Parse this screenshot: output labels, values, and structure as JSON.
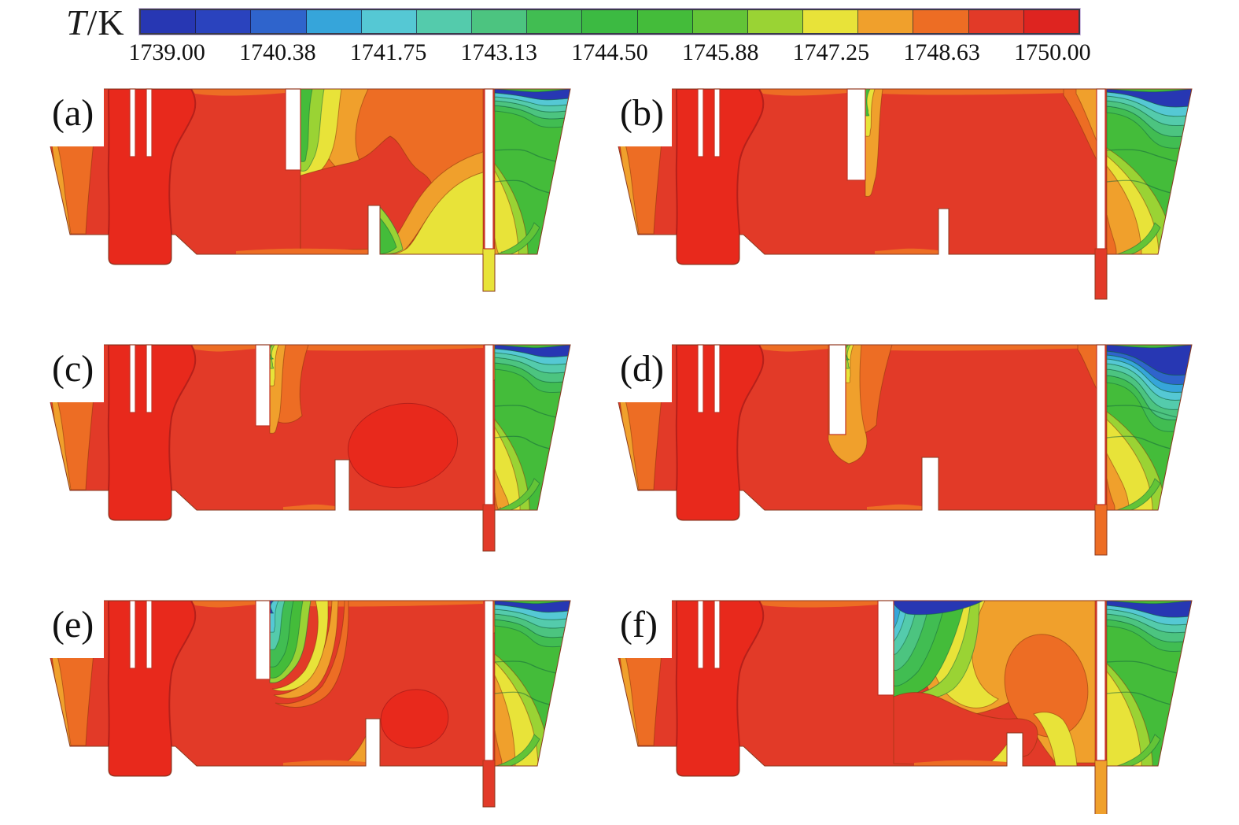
{
  "colorbar": {
    "title_symbol": "T",
    "title_unit": "/K",
    "tick_labels": [
      "1739.00",
      "1740.38",
      "1741.75",
      "1743.13",
      "1744.50",
      "1745.88",
      "1747.25",
      "1748.63",
      "1750.00"
    ],
    "segment_colors": [
      "#2737b3",
      "#2a43be",
      "#2f64cc",
      "#36a5da",
      "#55c8d4",
      "#54cbac",
      "#4cc480",
      "#41bd52",
      "#3cba42",
      "#44bc3a",
      "#63c437",
      "#9ad334",
      "#e8e339",
      "#f0a02c",
      "#ed6d24",
      "#e23a28",
      "#de2420"
    ],
    "border_color": "#3a3a4a"
  },
  "panels": [
    {
      "id": "a",
      "label": "(a)"
    },
    {
      "id": "b",
      "label": "(b)"
    },
    {
      "id": "c",
      "label": "(c)"
    },
    {
      "id": "d",
      "label": "(d)"
    },
    {
      "id": "e",
      "label": "(e)"
    },
    {
      "id": "f",
      "label": "(f)"
    }
  ],
  "chart_data": {
    "type": "heatmap",
    "subtype": "filled-contour-temperature-field",
    "variable": "T",
    "unit": "K",
    "range": [
      1739.0,
      1750.0
    ],
    "levels": [
      1739.0,
      1740.38,
      1741.75,
      1743.13,
      1744.5,
      1745.88,
      1747.25,
      1748.63,
      1750.0
    ],
    "colormap": "rainbow (blue = 1739 K cold, red = 1750 K hot)",
    "legend_position": "top",
    "layout": "2 columns x 3 rows of furnace cross-sections sharing one colorbar",
    "subplots": [
      {
        "label": "(a)",
        "summary": "Bulk melt near 1750 K; green-yellow-orange S-bands behind first baffle; red tongue in mid chamber; cool wedge (blue to green, 1739-1745 K) in top-right outlet chamber; yellow band and outlet stream about 1747 K."
      },
      {
        "label": "(b)",
        "summary": "Nearly whole tank above 1748.6 K; thin orange band along top between baffles; stratified cool wedge in top-right corner; large orange-yellow layering on right wall; outlet stream about 1750 K."
      },
      {
        "label": "(c)",
        "summary": "Bulk above 1748.6 K with bright 1750 K hot spot between bottom spur and second baffle; thin cool strip at top right; outlet stream about 1750 K."
      },
      {
        "label": "(d)",
        "summary": "Deeper first baffle; thick cold block (1739-1743 K) across top of right chamber; wide yellow layer down the right wall; orange tongue behind first baffle; outlet about 1748.6 K."
      },
      {
        "label": "(e)",
        "summary": "Cool fan of bands behind first baffle; 1750 K hot spot ahead of second baffle; enlarged yellow-orange layering in right chamber; outlet about 1750 K."
      },
      {
        "label": "(f)",
        "summary": "Longest baffles, shifted outlet; large cold region (1739-1744.5 K) spreading from first baffle across mid chamber top; strong yellow-orange S stratification toward outlet; outlet stream about 1747-1748 K."
      }
    ]
  }
}
